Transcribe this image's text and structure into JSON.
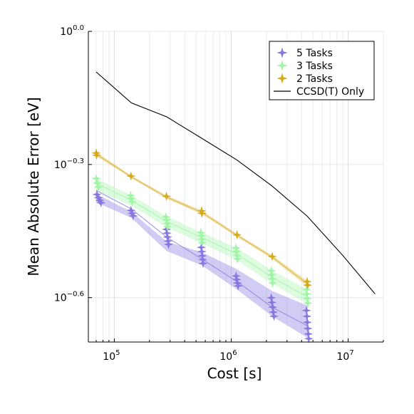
{
  "chart_data": {
    "type": "line",
    "xlabel": "Cost [s]",
    "ylabel": "Mean Absolute Error [eV]",
    "x_scale": "log10",
    "y_scale": "log10",
    "xlim": [
      60000,
      20000000
    ],
    "ylim": [
      0.1995,
      1.0
    ],
    "x_ticks": [
      {
        "value": 100000,
        "base": "10",
        "exp": "5"
      },
      {
        "value": 1000000,
        "base": "10",
        "exp": "6"
      },
      {
        "value": 10000000,
        "base": "10",
        "exp": "7"
      }
    ],
    "y_ticks": [
      {
        "value": 1.0,
        "base": "10",
        "exp": "0.0"
      },
      {
        "value": 0.5012,
        "base": "10",
        "exp": "−0.3"
      },
      {
        "value": 0.2512,
        "base": "10",
        "exp": "−0.6"
      }
    ],
    "grid": true,
    "legend_position": "top-right",
    "series": [
      {
        "name": "5 Tasks",
        "color": "#8877dd",
        "band_color": "#9a8ee6",
        "x": [
          70000,
          140000,
          280000,
          560000,
          1120000,
          2240000,
          4480000
        ],
        "y": [
          0.438,
          0.398,
          0.344,
          0.307,
          0.273,
          0.239,
          0.217
        ],
        "band_upper": [
          0.43,
          0.392,
          0.336,
          0.318,
          0.291,
          0.26,
          0.241
        ],
        "band_lower": [
          0.412,
          0.38,
          0.32,
          0.297,
          0.262,
          0.228,
          0.204
        ],
        "points": [
          [
            71000,
            0.429
          ],
          [
            73000,
            0.422
          ],
          [
            75000,
            0.416
          ],
          [
            77000,
            0.411
          ],
          [
            139000,
            0.395
          ],
          [
            142000,
            0.389
          ],
          [
            145000,
            0.384
          ],
          [
            279000,
            0.358
          ],
          [
            282000,
            0.351
          ],
          [
            285000,
            0.344
          ],
          [
            288000,
            0.337
          ],
          [
            291000,
            0.331
          ],
          [
            555000,
            0.326
          ],
          [
            560000,
            0.319
          ],
          [
            565000,
            0.312
          ],
          [
            570000,
            0.306
          ],
          [
            575000,
            0.3
          ],
          [
            1100000,
            0.281
          ],
          [
            1115000,
            0.276
          ],
          [
            1130000,
            0.271
          ],
          [
            1145000,
            0.267
          ],
          [
            2200000,
            0.251
          ],
          [
            2230000,
            0.245
          ],
          [
            2260000,
            0.239
          ],
          [
            2290000,
            0.233
          ],
          [
            2320000,
            0.228
          ],
          [
            4400000,
            0.235
          ],
          [
            4440000,
            0.228
          ],
          [
            4480000,
            0.221
          ],
          [
            4520000,
            0.214
          ],
          [
            4560000,
            0.208
          ],
          [
            4600000,
            0.203
          ]
        ]
      },
      {
        "name": "3 Tasks",
        "color": "#9ff5a4",
        "band_color": "#b3f7b8",
        "x": [
          70000,
          140000,
          280000,
          560000,
          1120000,
          2240000,
          4480000
        ],
        "y": [
          0.455,
          0.416,
          0.373,
          0.343,
          0.315,
          0.279,
          0.252
        ],
        "band_upper": [
          0.466,
          0.427,
          0.383,
          0.352,
          0.325,
          0.289,
          0.262
        ],
        "band_lower": [
          0.438,
          0.405,
          0.362,
          0.333,
          0.305,
          0.27,
          0.243
        ],
        "points": [
          [
            70000,
            0.466
          ],
          [
            71500,
            0.455
          ],
          [
            73000,
            0.446
          ],
          [
            138000,
            0.427
          ],
          [
            140000,
            0.42
          ],
          [
            142000,
            0.413
          ],
          [
            276000,
            0.382
          ],
          [
            279000,
            0.376
          ],
          [
            282000,
            0.369
          ],
          [
            285000,
            0.363
          ],
          [
            550000,
            0.352
          ],
          [
            555000,
            0.346
          ],
          [
            560000,
            0.34
          ],
          [
            565000,
            0.334
          ],
          [
            1100000,
            0.325
          ],
          [
            1110000,
            0.319
          ],
          [
            1120000,
            0.313
          ],
          [
            1130000,
            0.307
          ],
          [
            2200000,
            0.289
          ],
          [
            2220000,
            0.283
          ],
          [
            2240000,
            0.277
          ],
          [
            2260000,
            0.271
          ],
          [
            4400000,
            0.262
          ],
          [
            4440000,
            0.256
          ],
          [
            4480000,
            0.25
          ],
          [
            4520000,
            0.244
          ]
        ]
      },
      {
        "name": "2 Tasks",
        "color": "#d4aa1a",
        "band_color": "#e2c666",
        "x": [
          70000,
          140000,
          280000,
          560000,
          1120000,
          2240000,
          4480000
        ],
        "y": [
          0.529,
          0.47,
          0.423,
          0.391,
          0.347,
          0.31,
          0.27
        ],
        "band_upper": [
          0.535,
          0.473,
          0.427,
          0.395,
          0.35,
          0.313,
          0.274
        ],
        "band_lower": [
          0.523,
          0.467,
          0.419,
          0.387,
          0.344,
          0.307,
          0.266
        ],
        "points": [
          [
            70000,
            0.532
          ],
          [
            70500,
            0.526
          ],
          [
            139000,
            0.472
          ],
          [
            279000,
            0.425
          ],
          [
            558000,
            0.394
          ],
          [
            561000,
            0.389
          ],
          [
            1120000,
            0.348
          ],
          [
            2240000,
            0.311
          ],
          [
            4460000,
            0.273
          ],
          [
            4500000,
            0.268
          ]
        ]
      },
      {
        "name": "CCSD(T) Only",
        "color": "#000000",
        "x": [
          70000,
          140000,
          280000,
          560000,
          1120000,
          2240000,
          4480000,
          8960000,
          17000000
        ],
        "y": [
          0.81,
          0.69,
          0.642,
          0.574,
          0.513,
          0.448,
          0.383,
          0.313,
          0.256
        ]
      }
    ]
  }
}
